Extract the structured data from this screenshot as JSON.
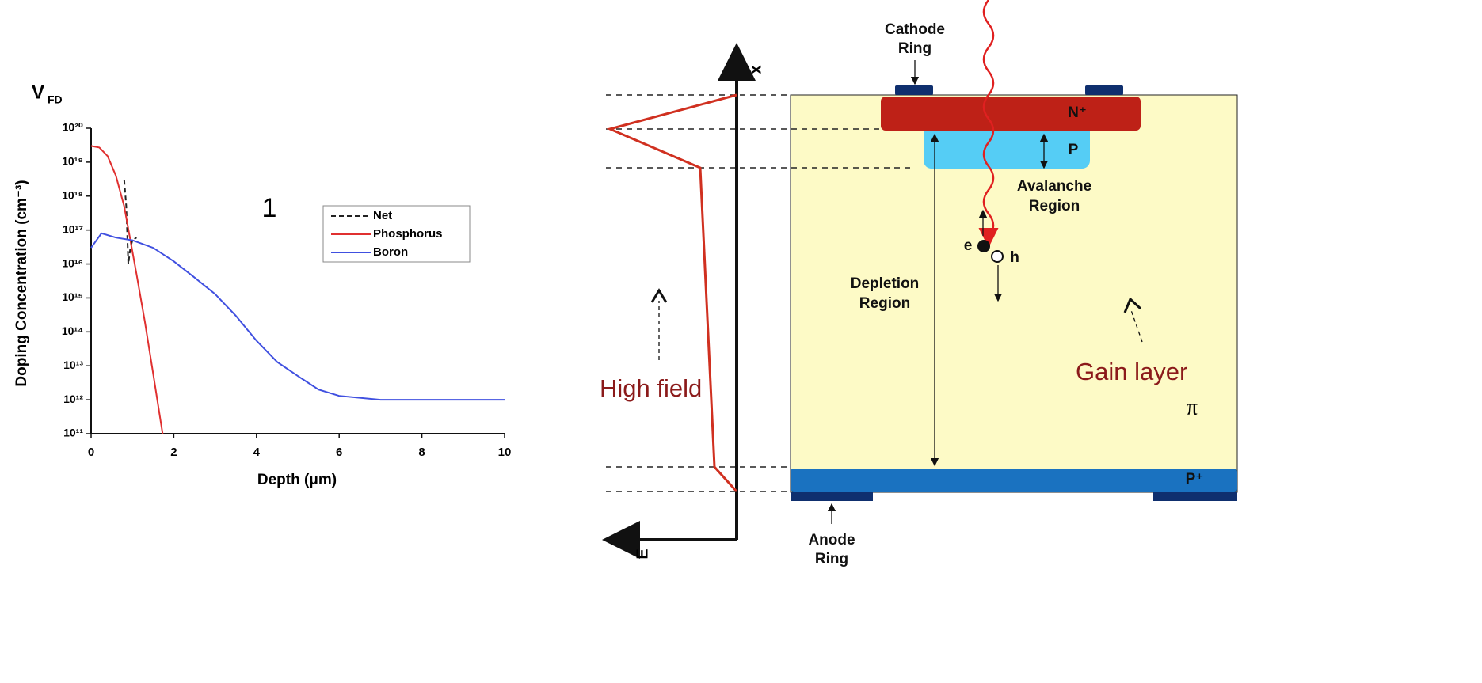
{
  "chart_data": {
    "type": "line",
    "title": "V",
    "title_sub": "FD",
    "annotation": "1",
    "x_label": "Depth (μm)",
    "y_label": "Doping Concentration (cm⁻³)",
    "xlim": [
      0,
      10
    ],
    "xticks": [
      0,
      2,
      4,
      6,
      8,
      10
    ],
    "ylim": [
      100000000000.0,
      1e+20
    ],
    "log_y": true,
    "yticks": [
      {
        "value": 100000000000.0,
        "label": "10¹¹"
      },
      {
        "value": 1000000000000.0,
        "label": "10¹²"
      },
      {
        "value": 10000000000000.0,
        "label": "10¹³"
      },
      {
        "value": 100000000000000.0,
        "label": "10¹⁴"
      },
      {
        "value": 1000000000000000.0,
        "label": "10¹⁵"
      },
      {
        "value": 1e+16,
        "label": "10¹⁶"
      },
      {
        "value": 1e+17,
        "label": "10¹⁷"
      },
      {
        "value": 1e+18,
        "label": "10¹⁸"
      },
      {
        "value": 1e+19,
        "label": "10¹⁹"
      },
      {
        "value": 1e+20,
        "label": "10²⁰"
      }
    ],
    "legend": "upper-right",
    "series": [
      {
        "name": "Net",
        "color": "#222222",
        "dashed": true,
        "x": [
          0.8,
          0.85,
          0.9,
          0.95,
          1.0,
          1.1
        ],
        "values": [
          3e+18,
          5e+17,
          1e+16,
          3e+16,
          5e+16,
          6e+16
        ]
      },
      {
        "name": "Phosphorus",
        "color": "#e03030",
        "dashed": false,
        "x": [
          0,
          0.2,
          0.4,
          0.6,
          0.8,
          0.95,
          1.1,
          1.3,
          1.5,
          1.73
        ],
        "values": [
          3e+19,
          2.7e+19,
          1.5e+19,
          4e+18,
          5e+17,
          5e+16,
          5000000000000000.0,
          200000000000000.0,
          6000000000000.0,
          100000000000.0
        ]
      },
      {
        "name": "Boron",
        "color": "#4050e0",
        "dashed": false,
        "x": [
          0,
          0.25,
          0.6,
          1,
          1.5,
          2,
          2.5,
          3,
          3.5,
          4,
          4.5,
          5,
          5.5,
          6,
          7,
          8,
          9,
          10
        ],
        "values": [
          3e+16,
          8e+16,
          6e+16,
          5e+16,
          3e+16,
          1.2e+16,
          4000000000000000.0,
          1300000000000000.0,
          300000000000000.0,
          55000000000000.0,
          13000000000000.0,
          5000000000000.0,
          2000000000000.0,
          1300000000000.0,
          1000000000000.0,
          1000000000000.0,
          1000000000000.0,
          1000000000000.0
        ]
      }
    ]
  },
  "diagram": {
    "cathode_ring": [
      "Cathode",
      "Ring"
    ],
    "anode_ring": [
      "Anode",
      "Ring"
    ],
    "n_plus": "N⁺",
    "p": "P",
    "p_plus": "P⁺",
    "avalanche_region": [
      "Avalanche",
      "Region"
    ],
    "depletion_region": [
      "Depletion",
      "Region"
    ],
    "electron": "e",
    "hole": "h",
    "gain_layer": "Gain layer",
    "pi": "π",
    "high_field": "High field",
    "x_axis": "x",
    "e_axis": "E"
  }
}
